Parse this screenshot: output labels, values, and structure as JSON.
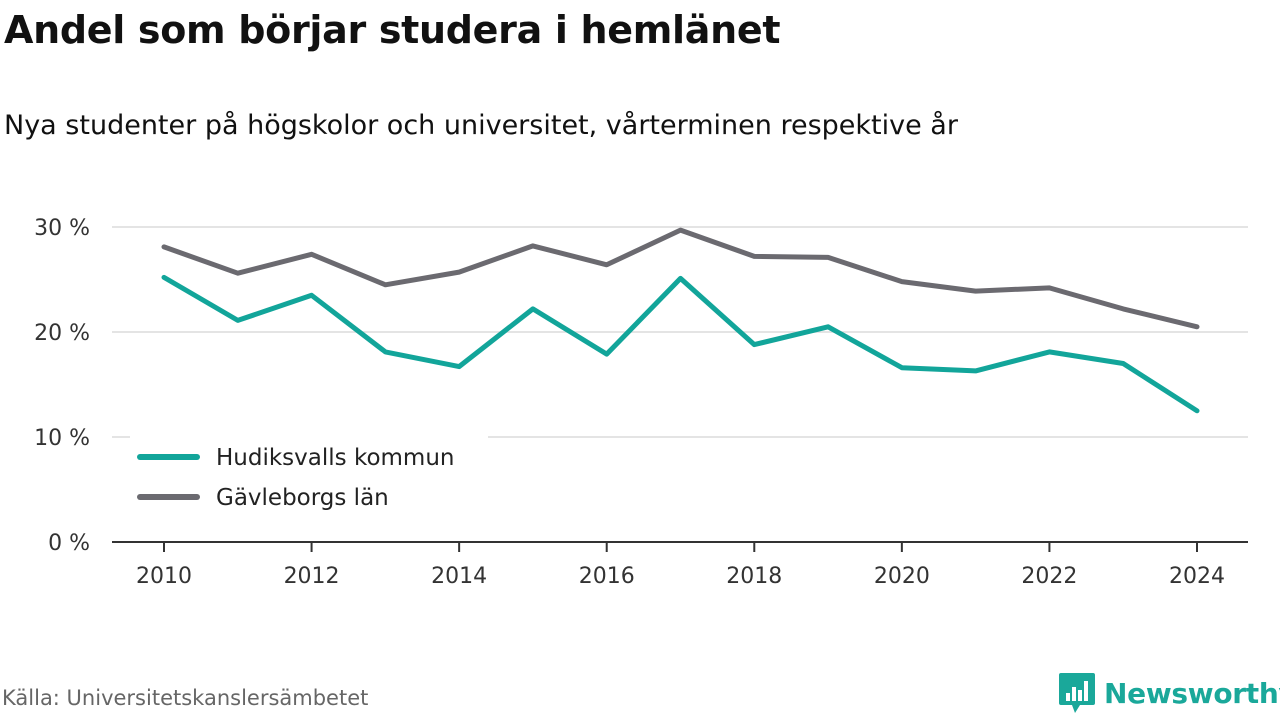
{
  "title": "Andel som börjar studera i hemlänet",
  "subtitle": "Nya studenter på högskolor och universitet, vårterminen respektive år",
  "source": "Källa: Universitetskanslersämbetet",
  "brand": "Newsworthy",
  "chart_data": {
    "type": "line",
    "x": [
      2010,
      2011,
      2012,
      2013,
      2014,
      2015,
      2016,
      2017,
      2018,
      2019,
      2020,
      2021,
      2022,
      2023,
      2024
    ],
    "xticks": [
      2010,
      2012,
      2014,
      2016,
      2018,
      2020,
      2022,
      2024
    ],
    "xtick_labels": [
      "2010",
      "2012",
      "2014",
      "2016",
      "2018",
      "2020",
      "2022",
      "2024"
    ],
    "ylim": [
      0,
      30
    ],
    "yticks": [
      0,
      10,
      20,
      30
    ],
    "ytick_labels": [
      "0 %",
      "10 %",
      "20 %",
      "30 %"
    ],
    "grid": true,
    "legend_position": "bottom-left",
    "series": [
      {
        "name": "Hudiksvalls kommun",
        "color": "#12a59a",
        "values": [
          25.2,
          21.1,
          23.5,
          18.1,
          16.7,
          22.2,
          17.9,
          25.1,
          18.8,
          20.5,
          16.6,
          16.3,
          18.1,
          17.0,
          12.5
        ]
      },
      {
        "name": "Gävleborgs län",
        "color": "#6b6a70",
        "values": [
          28.1,
          25.6,
          27.4,
          24.5,
          25.7,
          28.2,
          26.4,
          29.7,
          27.2,
          27.1,
          24.8,
          23.9,
          24.2,
          22.2,
          20.5
        ]
      }
    ]
  }
}
